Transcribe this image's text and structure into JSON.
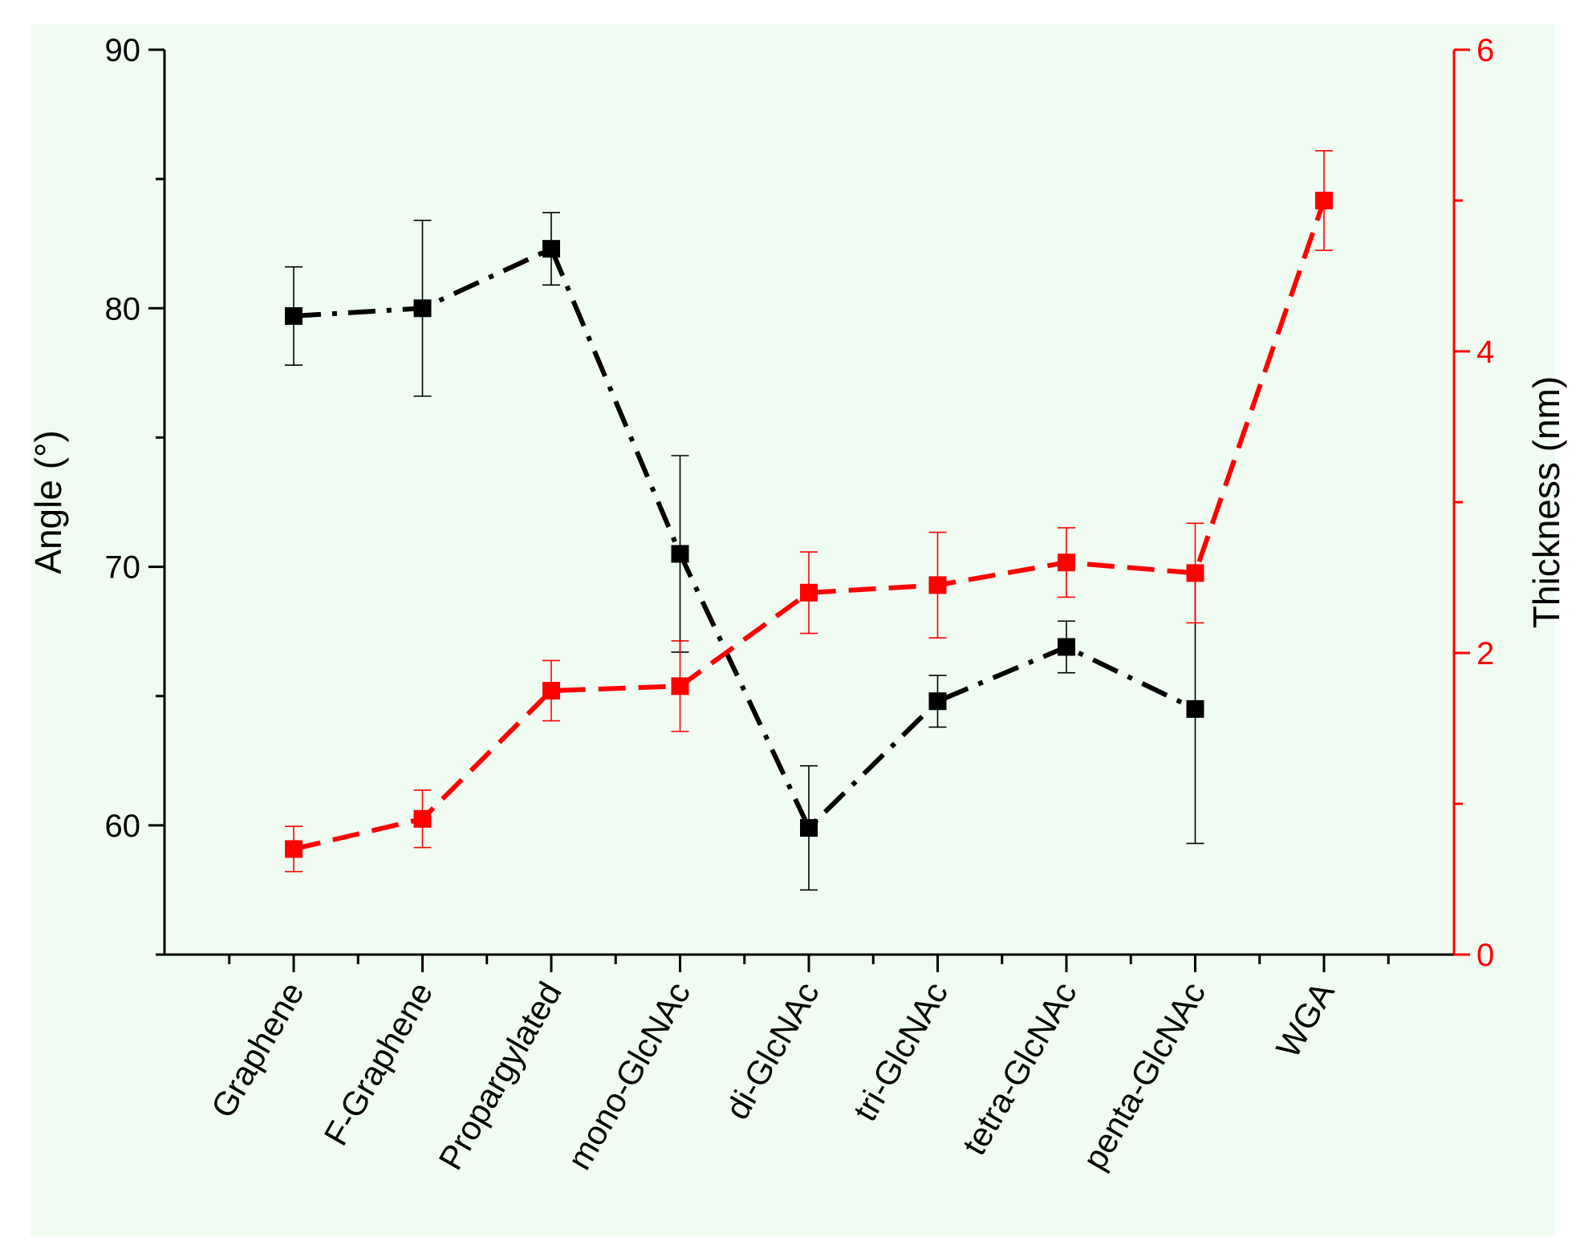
{
  "chart_data": {
    "type": "line",
    "categories": [
      "Graphene",
      "F-Graphene",
      "Propargylated",
      "mono-GlcNAc",
      "di-GlcNAc",
      "tri-GlcNAc",
      "tetra-GlcNAc",
      "penta-GlcNAc",
      "WGA"
    ],
    "ylabel": "Angle (°)",
    "y2label": "Thickness (nm)",
    "ylim": [
      55,
      90
    ],
    "y2lim": [
      0,
      6
    ],
    "yticks": [
      60,
      70,
      80,
      90
    ],
    "y2ticks": [
      0,
      2,
      4,
      6
    ],
    "series": [
      {
        "axis": "left",
        "color": "#000000",
        "line_style": "dash-dot",
        "marker": "square",
        "values": [
          79.7,
          80.0,
          82.3,
          70.5,
          59.9,
          64.8,
          66.9,
          64.5,
          null
        ],
        "errors": [
          1.9,
          3.4,
          1.4,
          3.8,
          2.4,
          1.0,
          1.0,
          5.2,
          null
        ]
      },
      {
        "axis": "right",
        "color": "#ff0000",
        "line_style": "dashed",
        "marker": "square",
        "values": [
          0.7,
          0.9,
          1.75,
          1.78,
          2.4,
          2.45,
          2.6,
          2.53,
          5.0
        ],
        "errors": [
          0.15,
          0.19,
          0.2,
          0.3,
          0.27,
          0.35,
          0.23,
          0.33,
          0.33
        ]
      }
    ],
    "grid": false,
    "legend": "none"
  }
}
